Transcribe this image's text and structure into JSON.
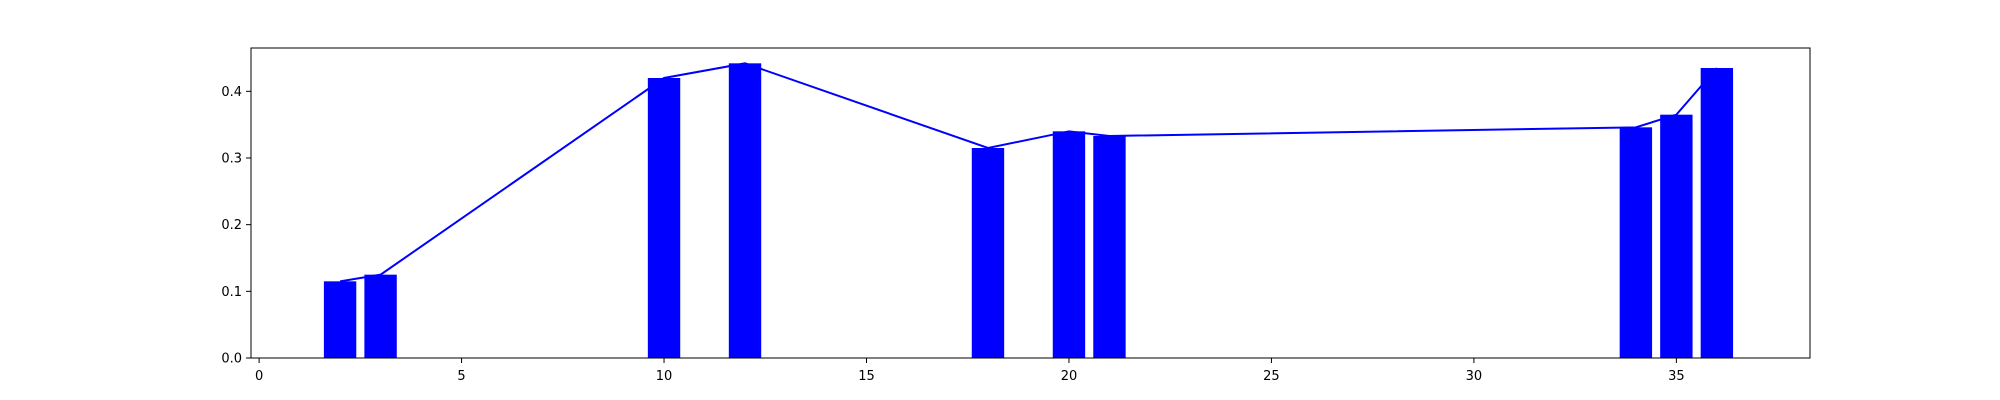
{
  "chart_data": {
    "type": "bar",
    "title": "",
    "xlabel": "",
    "ylabel": "",
    "grid": false,
    "xlim": [
      -0.2,
      38.3
    ],
    "ylim": [
      0.0,
      0.465
    ],
    "xticks": [
      0,
      5,
      10,
      15,
      20,
      25,
      30,
      35
    ],
    "yticks": [
      0.0,
      0.1,
      0.2,
      0.3,
      0.4
    ],
    "xtick_labels": [
      "0",
      "5",
      "10",
      "15",
      "20",
      "25",
      "30",
      "35"
    ],
    "ytick_labels": [
      "0.0",
      "0.1",
      "0.2",
      "0.3",
      "0.4"
    ],
    "bar_width": 0.8,
    "bar_color": "#0000ff",
    "line_color": "#0000ff",
    "x": [
      2,
      3,
      10,
      12,
      18,
      20,
      21,
      34,
      35,
      36
    ],
    "values": [
      0.115,
      0.125,
      0.42,
      0.442,
      0.315,
      0.34,
      0.333,
      0.346,
      0.365,
      0.435
    ],
    "series": [
      {
        "kind": "bar",
        "values": [
          0.115,
          0.125,
          0.42,
          0.442,
          0.315,
          0.34,
          0.333,
          0.346,
          0.365,
          0.435
        ]
      },
      {
        "kind": "line",
        "values": [
          0.115,
          0.125,
          0.42,
          0.442,
          0.315,
          0.34,
          0.333,
          0.346,
          0.365,
          0.435
        ]
      }
    ]
  }
}
